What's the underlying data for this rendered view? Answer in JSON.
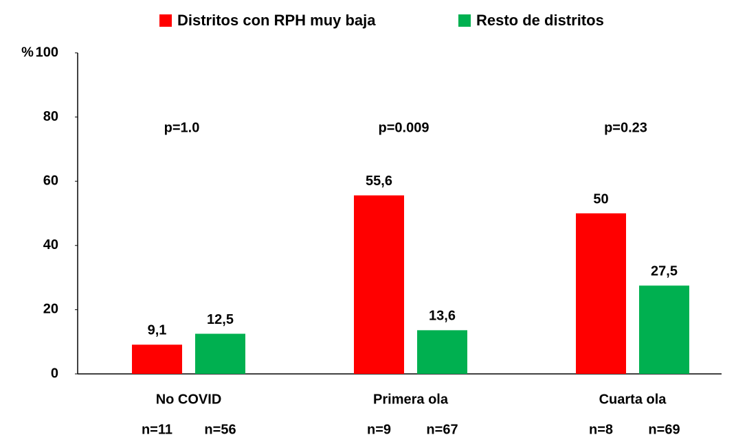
{
  "chart_data": {
    "type": "bar",
    "categories": [
      "No COVID",
      "Primera ola",
      "Cuarta ola"
    ],
    "series": [
      {
        "name": "Distritos con RPH muy baja",
        "color": "#ff0000",
        "values": [
          9.1,
          55.6,
          50
        ],
        "value_labels": [
          "9,1",
          "55,6",
          "50"
        ],
        "n_labels": [
          "n=11",
          "n=9",
          "n=8"
        ]
      },
      {
        "name": "Resto de distritos",
        "color": "#00b050",
        "values": [
          12.5,
          13.6,
          27.5
        ],
        "value_labels": [
          "12,5",
          "13,6",
          "27,5"
        ],
        "n_labels": [
          "n=56",
          "n=67",
          "n=69"
        ]
      }
    ],
    "annotations": [
      "p=1.0",
      "p=0.009",
      "p=0.23"
    ],
    "y_label": "%",
    "ylim": [
      0,
      100
    ],
    "yticks": [
      0,
      20,
      40,
      60,
      80,
      100
    ],
    "grid": false,
    "legend": "top"
  }
}
